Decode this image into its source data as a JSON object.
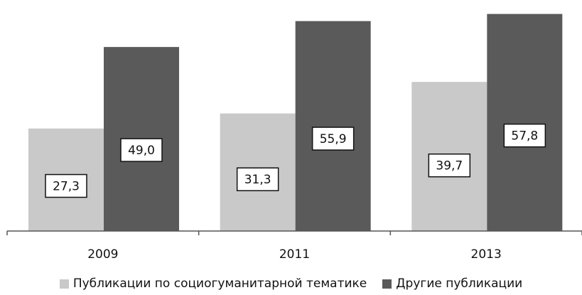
{
  "chart_data": {
    "type": "bar",
    "categories": [
      "2009",
      "2011",
      "2013"
    ],
    "series": [
      {
        "name": "Публикации по социогуманитарной тематике",
        "values": [
          27.3,
          31.3,
          39.7
        ],
        "labels": [
          "27,3",
          "31,3",
          "39,7"
        ],
        "color": "#c9c9c9"
      },
      {
        "name": "Другие публикации",
        "values": [
          49.0,
          55.9,
          57.8
        ],
        "labels": [
          "49,0",
          "55,9",
          "57,8"
        ],
        "color": "#5a5a5a"
      }
    ],
    "ylim": [
      0,
      60
    ],
    "grid": false,
    "legend_position": "bottom",
    "data_labels": "inside-boxed"
  }
}
